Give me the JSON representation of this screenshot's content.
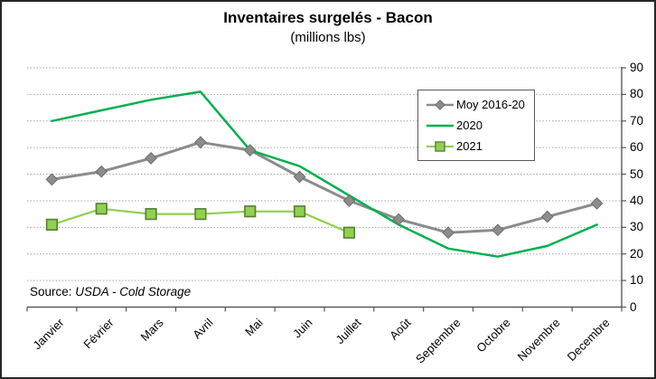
{
  "title": "Inventaires surgelés - Bacon",
  "subtitle": "(millions lbs)",
  "source": {
    "label": "Source:",
    "text": "USDA - Cold Storage"
  },
  "legend": {
    "items": [
      "Moy 2016-20",
      "2020",
      "2021"
    ]
  },
  "colors": {
    "moy_line": "#8C8C8C",
    "moy_marker_fill": "#8C8C8C",
    "moy_marker_stroke": "#6E6E6E",
    "line_2020": "#00B050",
    "line_2021": "#92D050",
    "marker_2021_stroke": "#538135",
    "gridline": "#A6A6A6",
    "axis": "#595959",
    "legend_border": "#595959"
  },
  "chart_data": {
    "type": "line",
    "categories": [
      "Janvier",
      "Février",
      "Mars",
      "Avril",
      "Mai",
      "Juin",
      "Juillet",
      "Août",
      "Septembre",
      "Octobre",
      "Novembre",
      "Decembre"
    ],
    "series": [
      {
        "name": "Moy 2016-20",
        "color": "#8C8C8C",
        "marker": "diamond",
        "marker_stroke": "#6E6E6E",
        "stroke_width": 3,
        "values": [
          48,
          51,
          56,
          62,
          59,
          49,
          40,
          33,
          28,
          29,
          34,
          39
        ]
      },
      {
        "name": "2020",
        "color": "#00B050",
        "marker": "none",
        "stroke_width": 2.5,
        "values": [
          70,
          74,
          78,
          81,
          59,
          53,
          42,
          31,
          22,
          19,
          23,
          31
        ]
      },
      {
        "name": "2021",
        "color": "#92D050",
        "marker": "square",
        "marker_stroke": "#538135",
        "stroke_width": 2.25,
        "values": [
          31,
          37,
          35,
          35,
          36,
          36,
          28
        ]
      }
    ],
    "ylim": [
      0,
      90
    ],
    "ytick_step": 10,
    "xlabel": "",
    "ylabel": "",
    "grid": "horizontal-dotted",
    "legend_position": "inside-top-right",
    "y_axis_side": "right",
    "x_label_rotation": 45
  }
}
